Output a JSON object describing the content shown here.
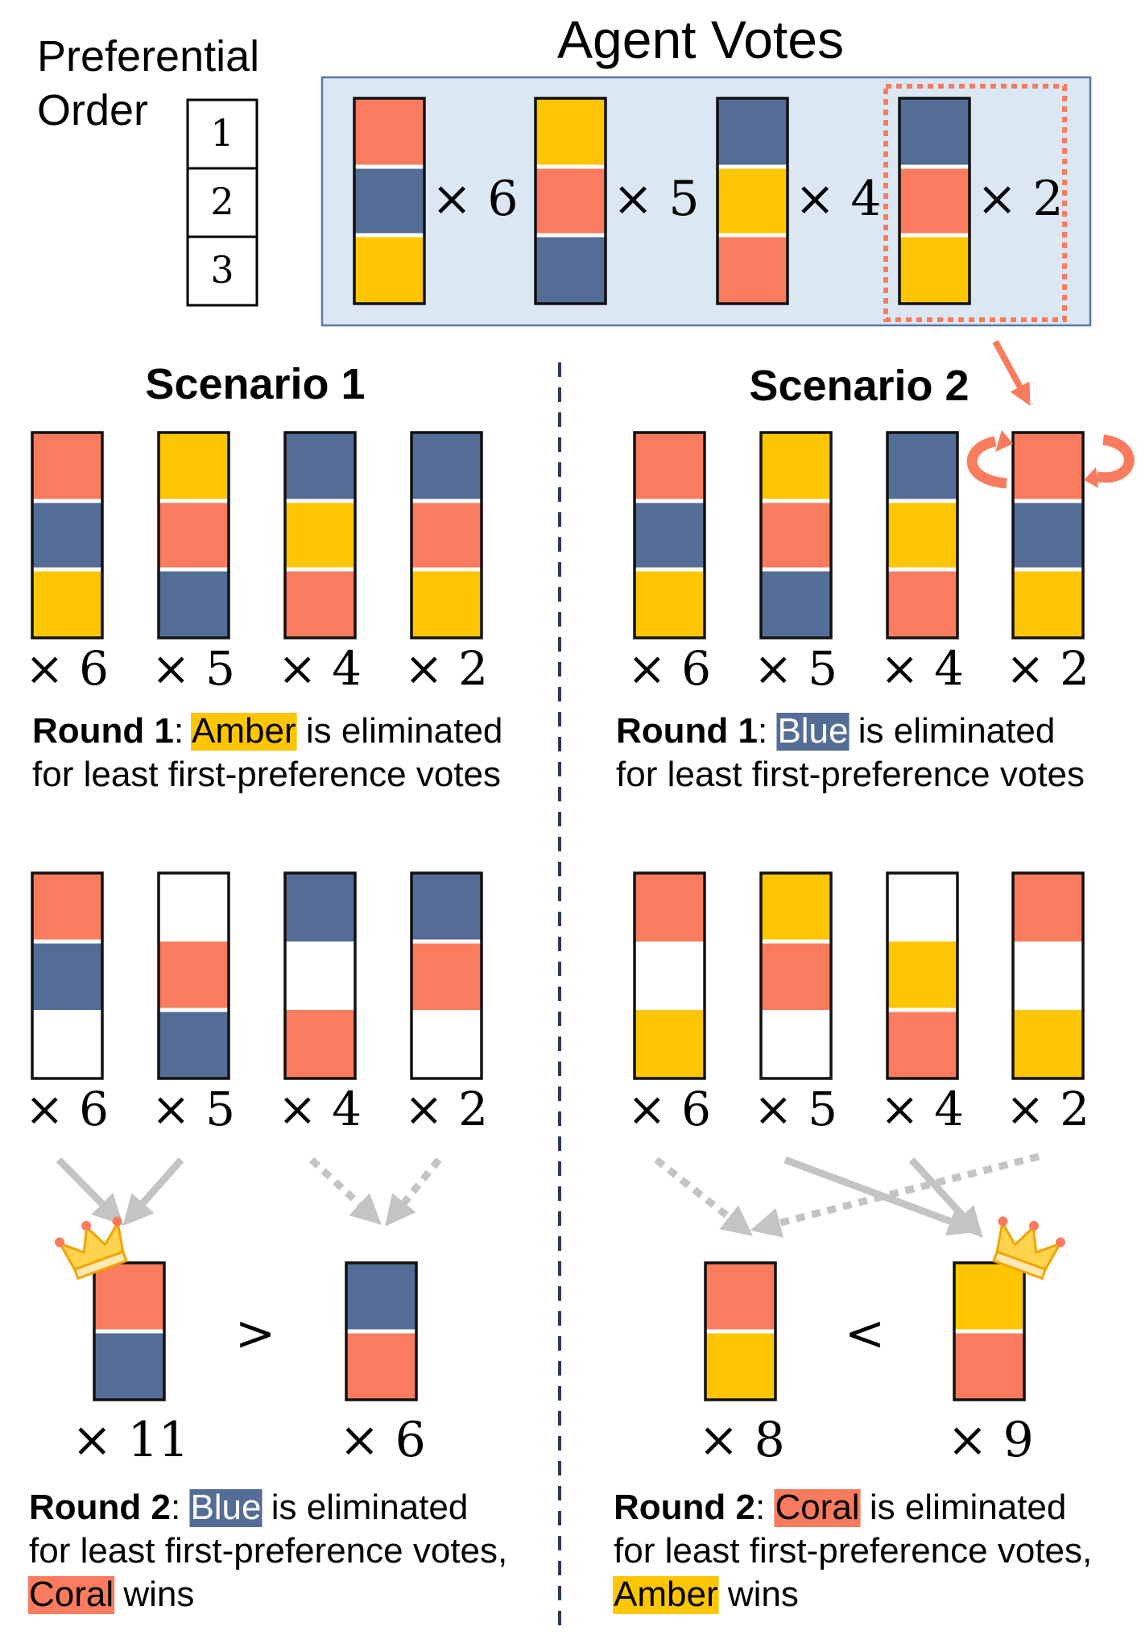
{
  "colors": {
    "coral": "#FA7B5D",
    "amber": "#FEC600",
    "blue": "#546D96",
    "empty": "#FFFFFF",
    "panel_bg": "#DCE7F4",
    "panel_border": "#5877A6",
    "arrow_gray": "#C4C4C4",
    "divider": "#2E3A55"
  },
  "legend": {
    "title_line1": "Preferential",
    "title_line2": "Order",
    "ranks": [
      "1",
      "2",
      "3"
    ]
  },
  "agent_votes": {
    "title": "Agent Votes",
    "ballots": [
      {
        "order": [
          "coral",
          "blue",
          "amber"
        ],
        "count_label": "× 6",
        "highlighted": false
      },
      {
        "order": [
          "amber",
          "coral",
          "blue"
        ],
        "count_label": "× 5",
        "highlighted": false
      },
      {
        "order": [
          "blue",
          "amber",
          "coral"
        ],
        "count_label": "× 4",
        "highlighted": false
      },
      {
        "order": [
          "blue",
          "coral",
          "amber"
        ],
        "count_label": "× 2",
        "highlighted": true
      }
    ]
  },
  "scenario1": {
    "title": "Scenario 1",
    "round1_ballots": [
      {
        "order": [
          "coral",
          "blue",
          "amber"
        ],
        "count_label": "× 6"
      },
      {
        "order": [
          "amber",
          "coral",
          "blue"
        ],
        "count_label": "× 5"
      },
      {
        "order": [
          "blue",
          "amber",
          "coral"
        ],
        "count_label": "× 4"
      },
      {
        "order": [
          "blue",
          "coral",
          "amber"
        ],
        "count_label": "× 2"
      }
    ],
    "round1_text": {
      "prefix": "Round 1",
      "colon": ": ",
      "candidate": "Amber",
      "middle": " is eliminated",
      "line2": "for least first-preference votes"
    },
    "round2_ballots": [
      {
        "order": [
          "coral",
          "blue",
          "empty"
        ],
        "count_label": "× 6"
      },
      {
        "order": [
          "empty",
          "coral",
          "blue"
        ],
        "count_label": "× 5"
      },
      {
        "order": [
          "blue",
          "empty",
          "coral"
        ],
        "count_label": "× 4"
      },
      {
        "order": [
          "blue",
          "coral",
          "empty"
        ],
        "count_label": "× 2"
      }
    ],
    "final": [
      {
        "order": [
          "coral",
          "blue"
        ],
        "count_label": "× 11",
        "winner": true
      },
      {
        "order": [
          "blue",
          "coral"
        ],
        "count_label": "× 6",
        "winner": false
      }
    ],
    "comparison": ">",
    "round2_text": {
      "prefix": "Round 2",
      "colon": ": ",
      "candidate": "Blue",
      "middle": " is eliminated",
      "line2": "for least first-preference votes,",
      "winner_candidate": "Coral",
      "winner_suffix": " wins"
    }
  },
  "scenario2": {
    "title": "Scenario 2",
    "round1_ballots": [
      {
        "order": [
          "coral",
          "blue",
          "amber"
        ],
        "count_label": "× 6"
      },
      {
        "order": [
          "amber",
          "coral",
          "blue"
        ],
        "count_label": "× 5"
      },
      {
        "order": [
          "blue",
          "amber",
          "coral"
        ],
        "count_label": "× 4"
      },
      {
        "order": [
          "coral",
          "blue",
          "amber"
        ],
        "count_label": "× 2",
        "swapped": true
      }
    ],
    "round1_text": {
      "prefix": "Round 1",
      "colon": ": ",
      "candidate": "Blue",
      "middle": " is eliminated",
      "line2": "for least first-preference votes"
    },
    "round2_ballots": [
      {
        "order": [
          "coral",
          "empty",
          "amber"
        ],
        "count_label": "× 6"
      },
      {
        "order": [
          "amber",
          "coral",
          "empty"
        ],
        "count_label": "× 5"
      },
      {
        "order": [
          "empty",
          "amber",
          "coral"
        ],
        "count_label": "× 4"
      },
      {
        "order": [
          "coral",
          "empty",
          "amber"
        ],
        "count_label": "× 2"
      }
    ],
    "final": [
      {
        "order": [
          "coral",
          "amber"
        ],
        "count_label": "× 8",
        "winner": false
      },
      {
        "order": [
          "amber",
          "coral"
        ],
        "count_label": "× 9",
        "winner": true
      }
    ],
    "comparison": "<",
    "round2_text": {
      "prefix": "Round 2",
      "colon": ": ",
      "candidate": "Coral",
      "middle": " is eliminated",
      "line2": "for least first-preference votes,",
      "winner_candidate": "Amber",
      "winner_suffix": " wins"
    }
  }
}
